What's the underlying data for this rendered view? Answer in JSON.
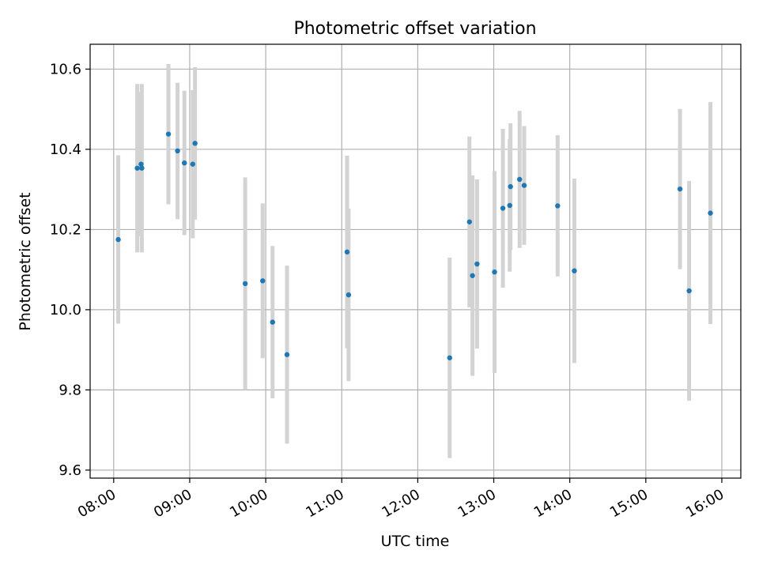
{
  "chart_data": {
    "type": "scatter",
    "title": "Photometric offset variation",
    "xlabel": "UTC time",
    "ylabel": "Photometric offset",
    "x_unit": "hours UTC",
    "xlim": [
      7.69,
      16.25
    ],
    "ylim": [
      9.58,
      10.662
    ],
    "x_ticks": [
      {
        "value": 8,
        "label": "08:00"
      },
      {
        "value": 9,
        "label": "09:00"
      },
      {
        "value": 10,
        "label": "10:00"
      },
      {
        "value": 11,
        "label": "11:00"
      },
      {
        "value": 12,
        "label": "12:00"
      },
      {
        "value": 13,
        "label": "13:00"
      },
      {
        "value": 14,
        "label": "14:00"
      },
      {
        "value": 15,
        "label": "15:00"
      },
      {
        "value": 16,
        "label": "16:00"
      }
    ],
    "y_ticks": [
      {
        "value": 9.6,
        "label": "9.6"
      },
      {
        "value": 9.8,
        "label": "9.8"
      },
      {
        "value": 10.0,
        "label": "10.0"
      },
      {
        "value": 10.2,
        "label": "10.2"
      },
      {
        "value": 10.4,
        "label": "10.4"
      },
      {
        "value": 10.6,
        "label": "10.6"
      }
    ],
    "grid": true,
    "tick_label_rotation_x": 30,
    "colors": {
      "point": "#1f77b4",
      "error_bar": "#d3d3d3",
      "grid": "#b0b0b0",
      "axes": "#000000"
    },
    "points": [
      {
        "x": 8.06,
        "y": 10.175,
        "err": 0.21
      },
      {
        "x": 8.31,
        "y": 10.353,
        "err": 0.21
      },
      {
        "x": 8.36,
        "y": 10.363,
        "err": 0.18
      },
      {
        "x": 8.37,
        "y": 10.353,
        "err": 0.21
      },
      {
        "x": 8.72,
        "y": 10.438,
        "err": 0.175
      },
      {
        "x": 8.84,
        "y": 10.396,
        "err": 0.17
      },
      {
        "x": 8.93,
        "y": 10.366,
        "err": 0.18
      },
      {
        "x": 9.04,
        "y": 10.363,
        "err": 0.185
      },
      {
        "x": 9.07,
        "y": 10.415,
        "err": 0.19
      },
      {
        "x": 9.73,
        "y": 10.065,
        "err": 0.265
      },
      {
        "x": 9.96,
        "y": 10.072,
        "err": 0.193
      },
      {
        "x": 10.09,
        "y": 9.969,
        "err": 0.19
      },
      {
        "x": 10.28,
        "y": 9.888,
        "err": 0.222
      },
      {
        "x": 11.07,
        "y": 10.144,
        "err": 0.24
      },
      {
        "x": 11.09,
        "y": 10.037,
        "err": 0.215
      },
      {
        "x": 12.42,
        "y": 9.88,
        "err": 0.25
      },
      {
        "x": 12.68,
        "y": 10.219,
        "err": 0.213
      },
      {
        "x": 12.72,
        "y": 10.085,
        "err": 0.25
      },
      {
        "x": 12.78,
        "y": 10.114,
        "err": 0.211
      },
      {
        "x": 13.01,
        "y": 10.094,
        "err": 0.252
      },
      {
        "x": 13.12,
        "y": 10.253,
        "err": 0.198
      },
      {
        "x": 13.21,
        "y": 10.26,
        "err": 0.165
      },
      {
        "x": 13.22,
        "y": 10.307,
        "err": 0.158
      },
      {
        "x": 13.34,
        "y": 10.325,
        "err": 0.171
      },
      {
        "x": 13.4,
        "y": 10.31,
        "err": 0.148
      },
      {
        "x": 13.84,
        "y": 10.259,
        "err": 0.176
      },
      {
        "x": 14.06,
        "y": 10.097,
        "err": 0.23
      },
      {
        "x": 15.45,
        "y": 10.301,
        "err": 0.2
      },
      {
        "x": 15.57,
        "y": 10.047,
        "err": 0.274
      },
      {
        "x": 15.85,
        "y": 10.241,
        "err": 0.277
      }
    ]
  }
}
